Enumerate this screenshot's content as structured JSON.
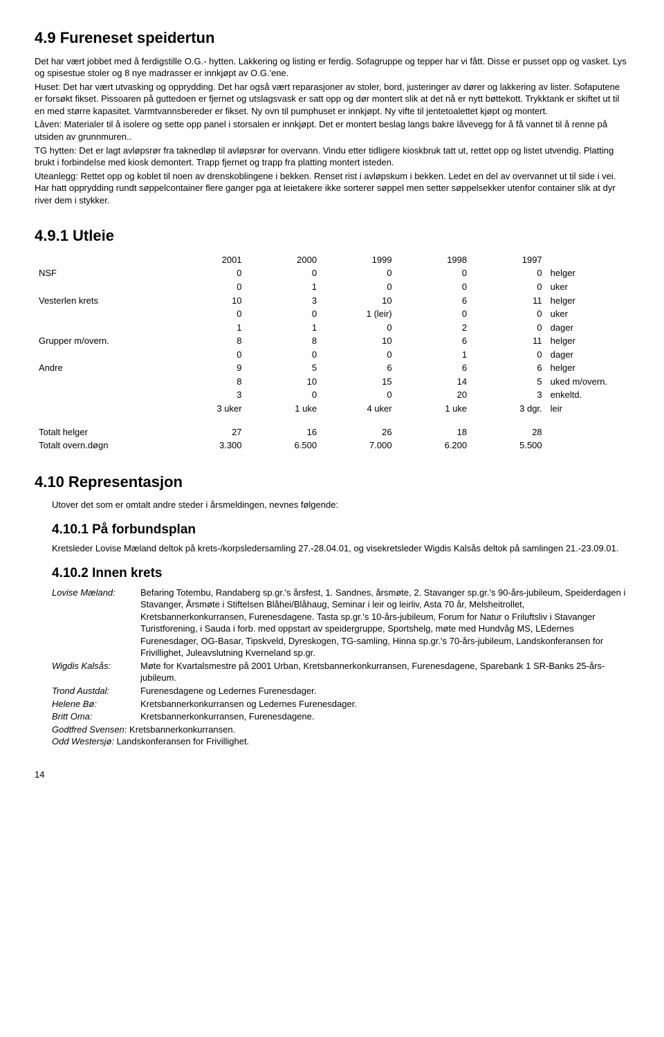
{
  "s49": {
    "title": "4.9  Fureneset speidertun",
    "p1": "Det har vært jobbet med å ferdigstille O.G.- hytten. Lakkering og listing er ferdig. Sofagruppe og tepper har vi fått. Disse er pusset opp og vasket. Lys og spisestue stoler og 8 nye madrasser er innkjøpt av O.G.'ene.",
    "p2": "Huset: Det har vært utvasking og opprydding. Det har også vært reparasjoner av stoler, bord, justeringer av dører og lakkering av lister. Sofaputene er forsøkt fikset. Pissoaren på guttedoen er fjernet og utslagsvask er satt opp og dør montert slik at det nå er nytt bøttekott. Trykktank er skiftet ut til en med større kapasitet. Varmtvannsbereder er fikset. Ny ovn til pumphuset er innkjøpt. Ny vifte til jentetoalettet kjøpt og montert.",
    "p3": "Låven: Materialer til å isolere og sette opp panel i storsalen er innkjøpt. Det er montert beslag langs bakre låvevegg for å få vannet til å renne på utsiden av grunnmuren..",
    "p4": "TG hytten: Det er lagt avløpsrør fra taknedløp til avløpsrør for overvann. Vindu etter tidligere kioskbruk tatt ut, rettet opp og listet utvendig. Platting brukt i forbindelse med kiosk demontert. Trapp fjernet og trapp fra platting montert isteden.",
    "p5": "Uteanlegg: Rettet opp og koblet til noen av drenskoblingene i bekken. Renset rist i avløpskum i bekken. Ledet en del av overvannet ut til side i vei. Har hatt opprydding rundt søppelcontainer flere ganger pga at leietakere ikke sorterer søppel men setter søppelsekker utenfor container slik at dyr river dem i stykker."
  },
  "utleie": {
    "title": "4.9.1  Utleie",
    "years": [
      "2001",
      "2000",
      "1999",
      "1998",
      "1997"
    ],
    "rows": [
      {
        "label": "NSF",
        "vals": [
          "0",
          "0",
          "0",
          "0",
          "0"
        ],
        "unit": "helger"
      },
      {
        "label": "",
        "vals": [
          "0",
          "1",
          "0",
          "0",
          "0"
        ],
        "unit": "uker"
      },
      {
        "label": "Vesterlen krets",
        "vals": [
          "10",
          "3",
          "10",
          "6",
          "11"
        ],
        "unit": "helger"
      },
      {
        "label": "",
        "vals": [
          "0",
          "0",
          "1 (leir)",
          "0",
          "0"
        ],
        "unit": "uker"
      },
      {
        "label": "",
        "vals": [
          "1",
          "1",
          "0",
          "2",
          "0"
        ],
        "unit": "dager"
      },
      {
        "label": "Grupper m/overn.",
        "vals": [
          "8",
          "8",
          "10",
          "6",
          "11"
        ],
        "unit": "helger"
      },
      {
        "label": "",
        "vals": [
          "0",
          "0",
          "0",
          "1",
          "0"
        ],
        "unit": "dager"
      },
      {
        "label": "Andre",
        "vals": [
          "9",
          "5",
          "6",
          "6",
          "6"
        ],
        "unit": "helger"
      },
      {
        "label": "",
        "vals": [
          "8",
          "10",
          "15",
          "14",
          "5"
        ],
        "unit": "uked m/overn."
      },
      {
        "label": "",
        "vals": [
          "3",
          "0",
          "0",
          "20",
          "3"
        ],
        "unit": "enkeltd."
      },
      {
        "label": "",
        "vals": [
          "3 uker",
          "1 uke",
          "4 uker",
          "1 uke",
          "3 dgr."
        ],
        "unit": "leir"
      }
    ],
    "totals": [
      {
        "label": "Totalt helger",
        "vals": [
          "27",
          "16",
          "26",
          "18",
          "28"
        ],
        "unit": ""
      },
      {
        "label": "Totalt overn.døgn",
        "vals": [
          "3.300",
          "6.500",
          "7.000",
          "6.200",
          "5.500"
        ],
        "unit": ""
      }
    ]
  },
  "rep": {
    "title": "4.10  Representasjon",
    "intro": "Utover det som er omtalt andre steder i årsmeldingen, nevnes følgende:"
  },
  "forbund": {
    "title": "4.10.1 På forbundsplan",
    "text": "Kretsleder Lovise Mæland deltok på krets-/korpsledersamling 27.-28.04.01, og visekretsleder Wigdis Kalsås deltok på samlingen 21.-23.09.01."
  },
  "innen": {
    "title": "4.10.2 Innen krets",
    "people": [
      {
        "name": "Lovise Mæland:",
        "text": "Befaring Totembu, Randaberg sp.gr.'s årsfest, 1. Sandnes, årsmøte,  2. Stavanger sp.gr.'s 90-års-jubileum, Speiderdagen i Stavanger, Årsmøte i Stiftelsen Blåhei/Blåhaug, Seminar i leir og leirliv, Asta 70 år, Melsheitrollet, Kretsbannerkonkurransen, Furenesdagene. Tasta sp.gr.'s 10-års-jubileum, Forum for Natur o Friluftsliv i Stavanger Turistforening, i Sauda i forb. med oppstart av speidergruppe, Sportshelg, møte med Hundvåg MS, LEdernes Furenesdager, OG-Basar, Tipskveld, Dyreskogen, TG-samling, Hinna sp.gr.'s 70-års-jubileum, Landskonferansen for Frivillighet, Juleavslutning Kverneland sp.gr."
      },
      {
        "name": "Wigdis Kalsås:",
        "text": "Møte for Kvartalsmestre på 2001 Urban, Kretsbannerkonkurransen, Furenesdagene, Sparebank 1 SR-Banks 25-års-jubileum."
      },
      {
        "name": "Trond Austdal:",
        "text": "Furenesdagene og Ledernes Furenesdager."
      },
      {
        "name": "Helene Bø:",
        "text": "Kretsbannerkonkurransen og Ledernes Furenesdager."
      },
      {
        "name": "Britt Oma:",
        "text": "Kretsbannerkonkurransen, Furenesdagene."
      }
    ],
    "extra1_name": "Godtfred Svensen",
    "extra1_text": ": Kretsbannerkonkurransen.",
    "extra2_name": "Odd Westersjø:",
    "extra2_text": "  Landskonferansen for Frivillighet."
  },
  "pagenum": "14"
}
